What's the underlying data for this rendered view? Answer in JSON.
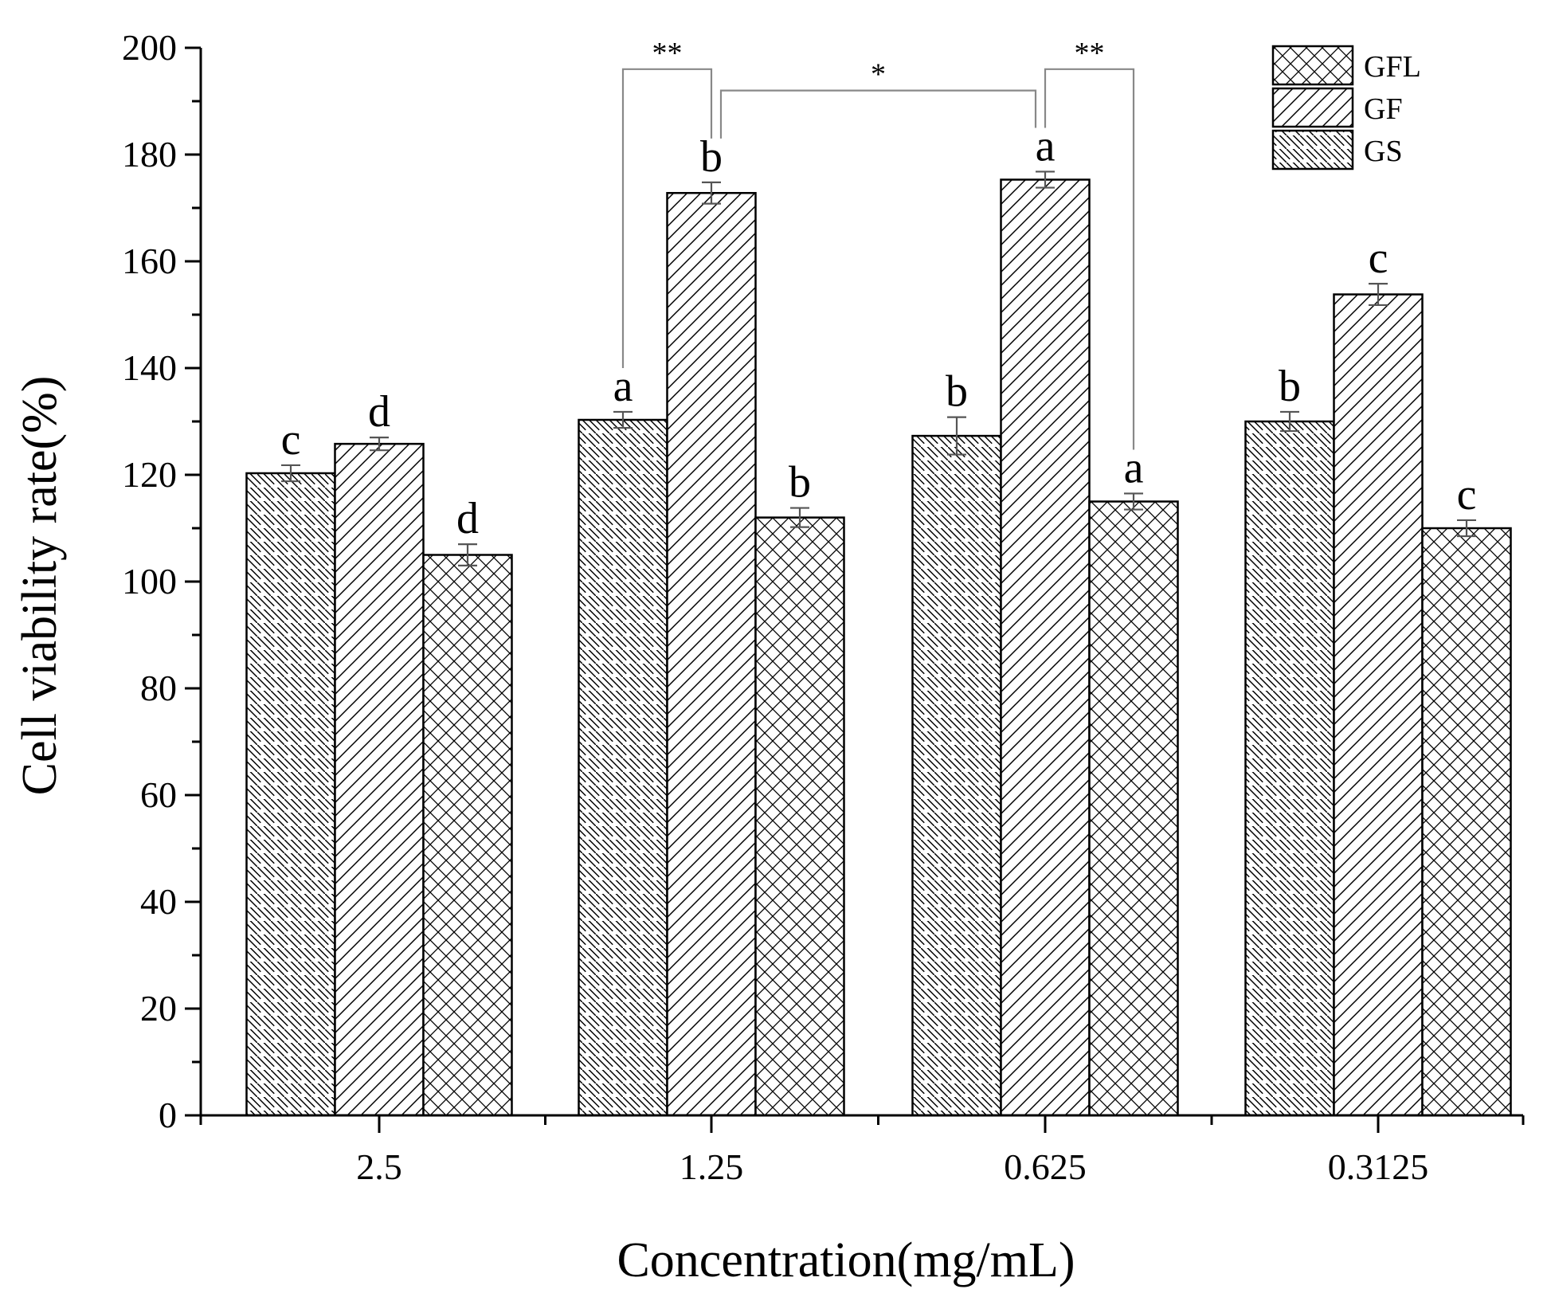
{
  "chart_data": {
    "type": "bar",
    "title": "",
    "xlabel": "Concentration(mg/mL)",
    "ylabel": "Cell viability rate(%)",
    "ylim": [
      0,
      200
    ],
    "yticks": [
      "0",
      "20",
      "40",
      "60",
      "80",
      "100",
      "120",
      "140",
      "160",
      "180",
      "200"
    ],
    "categories": [
      "2.5",
      "1.25",
      "0.625",
      "0.3125"
    ],
    "legend_position": "top-right",
    "legend_order": [
      "GFL",
      "GF",
      "GS"
    ],
    "bar_order": [
      "GS",
      "GF",
      "GFL"
    ],
    "series": [
      {
        "name": "GFL",
        "pattern": "crosshatch",
        "values": [
          105,
          112,
          115,
          110
        ],
        "errors": [
          2.0,
          1.8,
          1.5,
          1.5
        ],
        "letters": [
          "d",
          "b",
          "a",
          "c"
        ]
      },
      {
        "name": "GF",
        "pattern": "forward-diagonal",
        "values": [
          125.8,
          172.8,
          175.3,
          153.8
        ],
        "errors": [
          1.2,
          2.0,
          1.5,
          2.0
        ],
        "letters": [
          "d",
          "b",
          "a",
          "c"
        ]
      },
      {
        "name": "GS",
        "pattern": "back-diagonal",
        "values": [
          120.3,
          130.3,
          127.3,
          130.0
        ],
        "errors": [
          1.5,
          1.5,
          3.5,
          1.8
        ],
        "letters": [
          "c",
          "a",
          "b",
          "b"
        ]
      }
    ],
    "significance": [
      {
        "label": "**",
        "between": [
          {
            "category": "1.25",
            "series": "GS"
          },
          {
            "category": "1.25",
            "series": "GF"
          }
        ],
        "level": 196
      },
      {
        "label": "*",
        "between": [
          {
            "category": "1.25",
            "series": "GF"
          },
          {
            "category": "0.625",
            "series": "GF"
          }
        ],
        "level": 192
      },
      {
        "label": "**",
        "between": [
          {
            "category": "0.625",
            "series": "GF"
          },
          {
            "category": "0.625",
            "series": "GFL"
          }
        ],
        "level": 196
      }
    ],
    "colors": {
      "bar_fill": "#ffffff",
      "stroke": "#000000",
      "bracket": "#888888",
      "error_bar": "#555555"
    }
  }
}
